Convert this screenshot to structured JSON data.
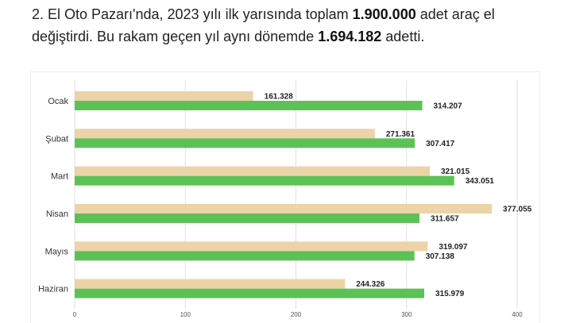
{
  "intro": {
    "part1": "2. El Oto Pazarı'nda, 2023 yılı ilk yarısında toplam ",
    "bold1": "1.900.000",
    "part2": " adet araç el değiştirdi. Bu rakam geçen yıl aynı dönemde ",
    "bold2": "1.694.182",
    "part3": " adetti."
  },
  "chart_data": {
    "type": "bar",
    "orientation": "horizontal",
    "categories": [
      "Ocak",
      "Şubat",
      "Mart",
      "Nisan",
      "Mayıs",
      "Haziran"
    ],
    "series": [
      {
        "color": "#ecd3a8",
        "values": [
          161.328,
          271.361,
          321.015,
          377.055,
          319.097,
          244.326
        ],
        "labels": [
          "161.328",
          "271.361",
          "321.015",
          "377.055",
          "319.097",
          "244.326"
        ]
      },
      {
        "color": "#5cc255",
        "values": [
          314.207,
          307.417,
          343.051,
          311.657,
          307.138,
          315.979
        ],
        "labels": [
          "314.207",
          "307.417",
          "343.051",
          "311.657",
          "307.138",
          "315.979"
        ]
      }
    ],
    "xlim": [
      0,
      400
    ],
    "ticks": [
      0,
      100,
      200,
      300,
      400
    ],
    "tick_labels": [
      "0",
      "100",
      "200",
      "300",
      "400"
    ],
    "grid": true,
    "legend": "none"
  }
}
